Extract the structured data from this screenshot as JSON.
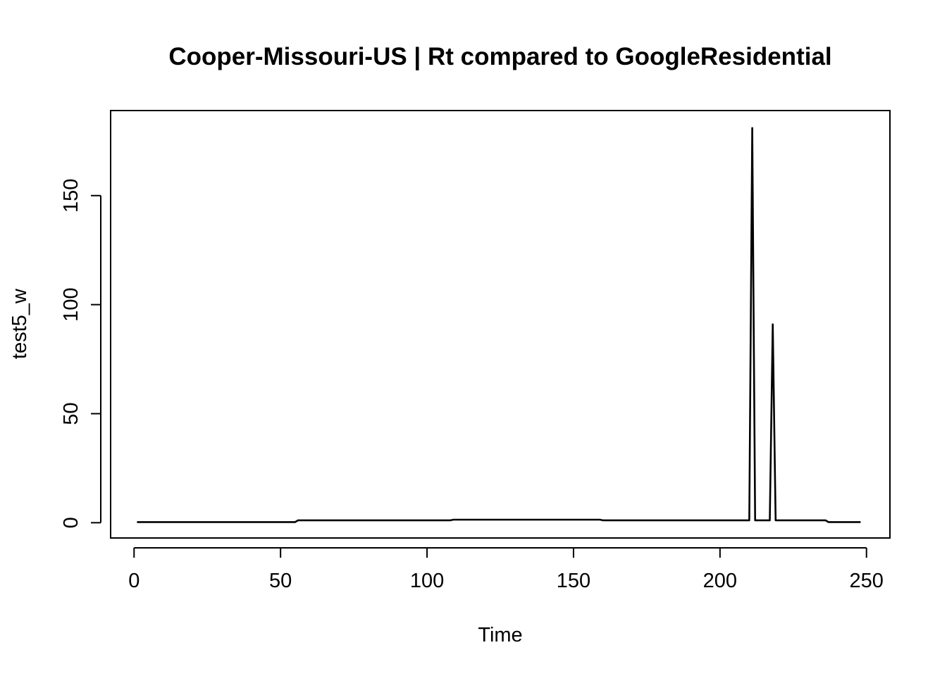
{
  "chart_data": {
    "type": "line",
    "title": "Cooper-Missouri-US | Rt compared to GoogleResidential",
    "xlabel": "Time",
    "ylabel": "test5_w",
    "xlim": [
      -8,
      258
    ],
    "ylim": [
      -7,
      189
    ],
    "xticks": [
      0,
      50,
      100,
      150,
      200,
      250
    ],
    "yticks": [
      0,
      50,
      100,
      150
    ],
    "grid": false,
    "series": [
      {
        "x": [
          1,
          55,
          56,
          108,
          109,
          159,
          160,
          210,
          211,
          212,
          217,
          218,
          219,
          236,
          237,
          248
        ],
        "values": [
          0.3,
          0.3,
          1.1,
          1.1,
          1.4,
          1.4,
          1.1,
          1.1,
          181,
          1.1,
          1.1,
          91,
          1.1,
          1.1,
          0.3,
          0.3
        ]
      }
    ]
  }
}
